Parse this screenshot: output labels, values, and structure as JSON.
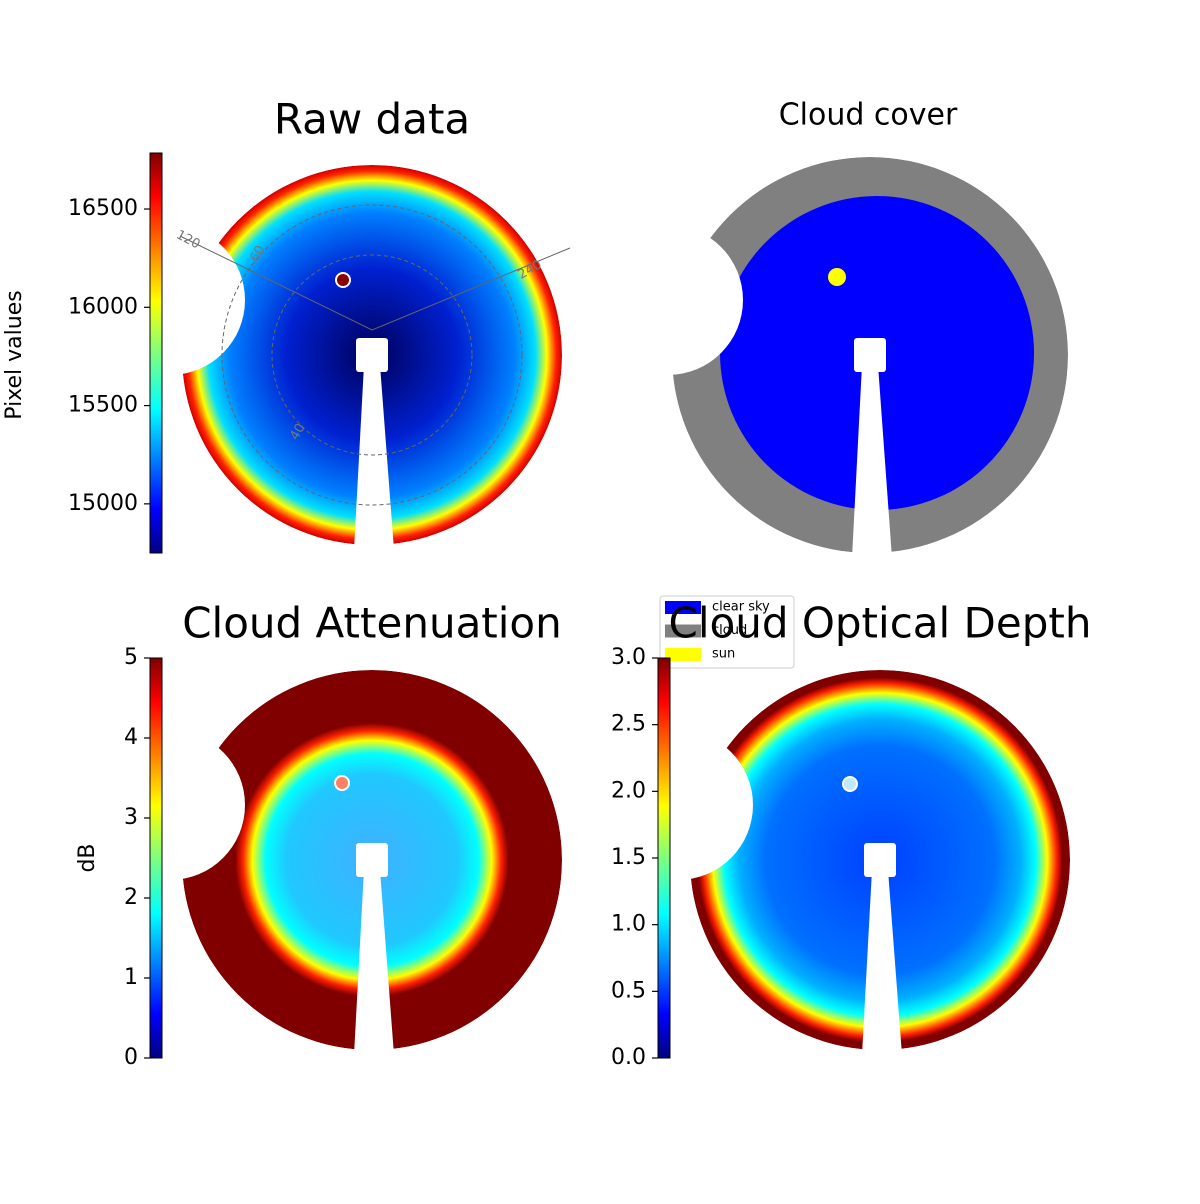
{
  "chart_data": [
    {
      "type": "image",
      "title": "Raw data",
      "colorbar_label": "Pixel values",
      "ylim": [
        14750,
        16785
      ],
      "yticks": [
        15000,
        15500,
        16000,
        16500
      ],
      "annotations": [
        "120",
        "60",
        "240",
        "40"
      ]
    },
    {
      "type": "image",
      "title": "Cloud cover",
      "series": [
        {
          "name": "clear sky",
          "color": "#0000ff"
        },
        {
          "name": "cloud",
          "color": "#808080"
        },
        {
          "name": "sun",
          "color": "#ffff00"
        }
      ]
    },
    {
      "type": "image",
      "title": "Cloud Attenuation",
      "colorbar_label": "dB",
      "ylim": [
        0,
        5
      ],
      "yticks": [
        0,
        1,
        2,
        3,
        4,
        5
      ]
    },
    {
      "type": "image",
      "title": "Cloud Optical Depth",
      "ylim": [
        0,
        3
      ],
      "yticks": [
        {
          "value": 0,
          "label": "0.0"
        },
        {
          "value": 0.5,
          "label": "0.5"
        },
        {
          "value": 1,
          "label": "1.0"
        },
        {
          "value": 1.5,
          "label": "1.5"
        },
        {
          "value": 2,
          "label": "2.0"
        },
        {
          "value": 2.5,
          "label": "2.5"
        },
        {
          "value": 3,
          "label": "3.0"
        }
      ]
    }
  ]
}
